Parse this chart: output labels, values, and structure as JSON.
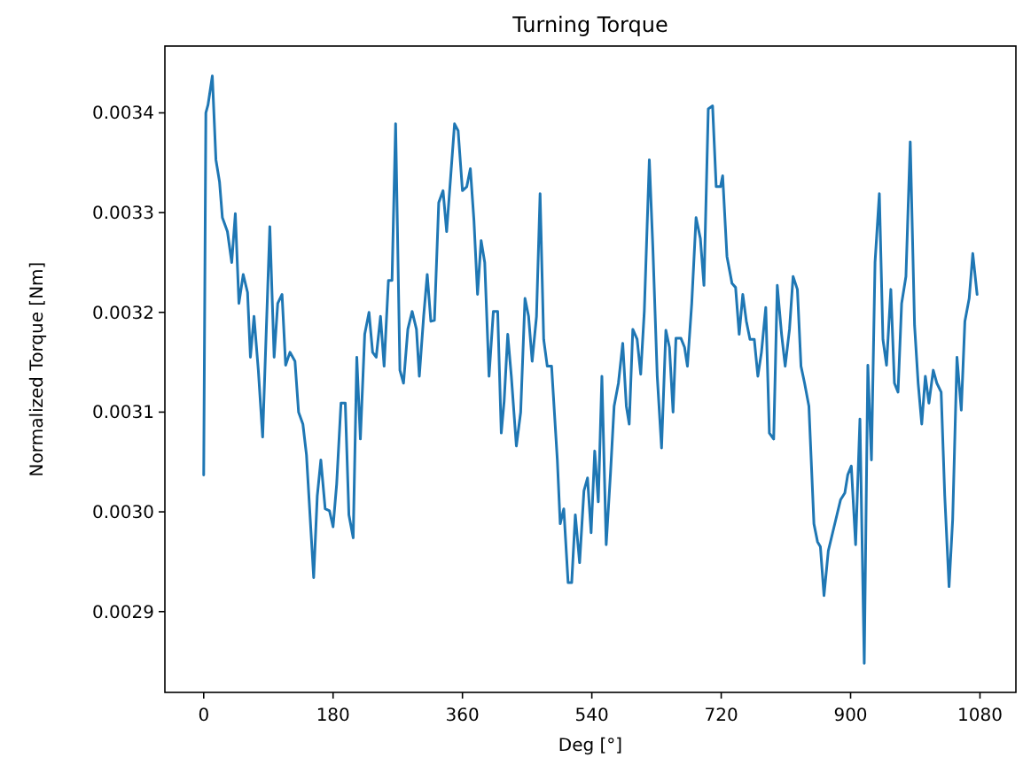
{
  "chart_data": {
    "type": "line",
    "title": "Turning Torque",
    "xlabel": "Deg [°]",
    "ylabel": "Normalized Torque [Nm]",
    "xlim": [
      -54,
      1130
    ],
    "xticks": [
      0,
      180,
      360,
      540,
      720,
      900,
      1080
    ],
    "ylim": [
      0.002819,
      0.003467
    ],
    "yticks": [
      {
        "value": 0.0029,
        "label": "0.0029"
      },
      {
        "value": 0.003,
        "label": "0.0030"
      },
      {
        "value": 0.0031,
        "label": "0.0031"
      },
      {
        "value": 0.0032,
        "label": "0.0032"
      },
      {
        "value": 0.0033,
        "label": "0.0033"
      },
      {
        "value": 0.0034,
        "label": "0.0034"
      }
    ],
    "grid": false,
    "marker": "none",
    "line_style": "solid",
    "series": [
      {
        "color": "#1f77b4",
        "x": [
          0,
          3,
          6,
          12,
          17,
          22,
          26,
          33,
          39,
          44,
          49,
          55,
          61,
          65,
          70,
          76,
          82,
          92,
          98,
          103,
          109,
          114,
          120,
          127,
          132,
          138,
          143,
          153,
          158,
          163,
          169,
          175,
          180,
          185,
          191,
          197,
          202,
          208,
          213,
          218,
          224,
          230,
          235,
          240,
          246,
          251,
          257,
          262,
          267,
          273,
          278,
          284,
          290,
          296,
          300,
          306,
          311,
          316,
          321,
          327,
          333,
          338,
          344,
          349,
          354,
          360,
          366,
          371,
          376,
          381,
          386,
          391,
          397,
          403,
          409,
          414,
          418,
          423,
          428,
          435,
          441,
          447,
          452,
          457,
          463,
          468,
          473,
          478,
          484,
          492,
          496,
          501,
          507,
          512,
          517,
          523,
          529,
          534,
          539,
          544,
          549,
          554,
          560,
          566,
          571,
          577,
          583,
          588,
          592,
          597,
          603,
          608,
          613,
          620,
          625,
          631,
          637,
          643,
          648,
          653,
          657,
          664,
          669,
          673,
          679,
          685,
          691,
          696,
          702,
          708,
          713,
          719,
          722,
          728,
          735,
          740,
          745,
          750,
          755,
          760,
          766,
          771,
          776,
          782,
          787,
          793,
          798,
          804,
          809,
          815,
          820,
          826,
          831,
          836,
          842,
          849,
          854,
          858,
          863,
          869,
          875,
          881,
          886,
          892,
          896,
          901,
          907,
          913,
          919,
          924,
          929,
          934,
          940,
          945,
          950,
          956,
          961,
          966,
          971,
          977,
          983,
          989,
          994,
          999,
          1004,
          1009,
          1015,
          1020,
          1026,
          1031,
          1037,
          1042,
          1048,
          1054,
          1059,
          1065,
          1070,
          1076
        ],
        "values": [
          0.003037,
          0.0034,
          0.003408,
          0.003437,
          0.003353,
          0.003331,
          0.003295,
          0.003281,
          0.00325,
          0.003299,
          0.003209,
          0.003238,
          0.00322,
          0.003155,
          0.003196,
          0.003142,
          0.003075,
          0.003286,
          0.003155,
          0.003209,
          0.003218,
          0.003147,
          0.00316,
          0.003151,
          0.0031,
          0.003088,
          0.003057,
          0.002934,
          0.003016,
          0.003052,
          0.003003,
          0.003001,
          0.002985,
          0.003028,
          0.003109,
          0.003109,
          0.002997,
          0.002974,
          0.003155,
          0.003073,
          0.003178,
          0.0032,
          0.00316,
          0.003155,
          0.003196,
          0.003146,
          0.003232,
          0.003232,
          0.003389,
          0.003142,
          0.003129,
          0.003183,
          0.003201,
          0.003183,
          0.003136,
          0.003196,
          0.003238,
          0.003191,
          0.003192,
          0.00331,
          0.003322,
          0.003281,
          0.00334,
          0.003389,
          0.003382,
          0.003322,
          0.003326,
          0.003344,
          0.003292,
          0.003218,
          0.003272,
          0.00325,
          0.003136,
          0.003201,
          0.003201,
          0.003079,
          0.003111,
          0.003178,
          0.003136,
          0.003066,
          0.0031,
          0.003214,
          0.003196,
          0.003151,
          0.003196,
          0.003319,
          0.003173,
          0.003146,
          0.003146,
          0.003052,
          0.002988,
          0.003003,
          0.002929,
          0.002929,
          0.002997,
          0.002949,
          0.003021,
          0.003034,
          0.002979,
          0.003061,
          0.00301,
          0.003136,
          0.002967,
          0.003039,
          0.003106,
          0.003129,
          0.003169,
          0.003106,
          0.003088,
          0.003183,
          0.003173,
          0.003138,
          0.003201,
          0.003353,
          0.003263,
          0.003136,
          0.003064,
          0.003182,
          0.003165,
          0.0031,
          0.003174,
          0.003174,
          0.003165,
          0.003146,
          0.003209,
          0.003295,
          0.003274,
          0.003227,
          0.003404,
          0.003407,
          0.003326,
          0.003326,
          0.003337,
          0.003256,
          0.003229,
          0.003225,
          0.003178,
          0.003218,
          0.003191,
          0.003173,
          0.003173,
          0.003136,
          0.00316,
          0.003205,
          0.003079,
          0.003073,
          0.003227,
          0.003178,
          0.003146,
          0.003183,
          0.003236,
          0.003223,
          0.003146,
          0.003129,
          0.003106,
          0.002988,
          0.00297,
          0.002965,
          0.002916,
          0.002961,
          0.002979,
          0.002997,
          0.003012,
          0.003019,
          0.003037,
          0.003046,
          0.002967,
          0.003093,
          0.002848,
          0.003147,
          0.003052,
          0.00325,
          0.003319,
          0.003173,
          0.003147,
          0.003223,
          0.003129,
          0.00312,
          0.003209,
          0.003236,
          0.003371,
          0.003187,
          0.003129,
          0.003088,
          0.003136,
          0.003109,
          0.003142,
          0.003129,
          0.00312,
          0.003016,
          0.002925,
          0.002992,
          0.003155,
          0.003102,
          0.003191,
          0.003214,
          0.003259,
          0.003218
        ]
      }
    ]
  }
}
